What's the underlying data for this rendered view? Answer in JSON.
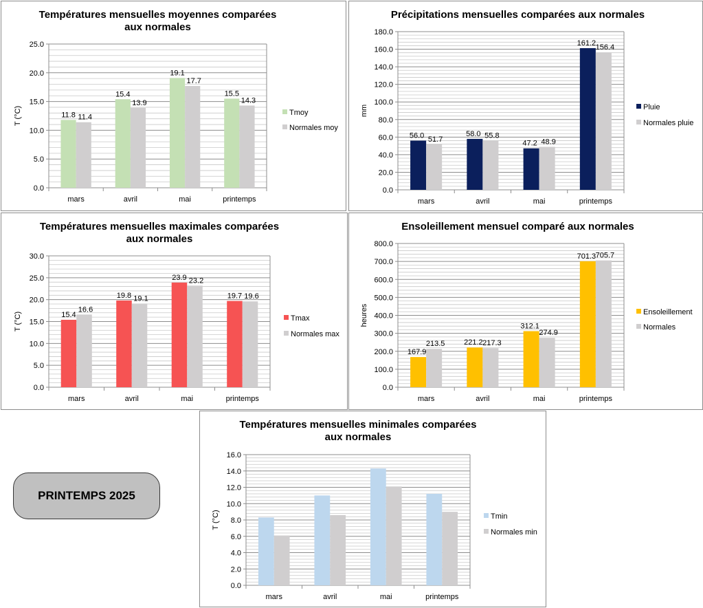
{
  "badge": {
    "label": "PRINTEMPS 2025"
  },
  "chart_data": [
    {
      "id": "tmoy",
      "type": "bar",
      "title": [
        "Températures mensuelles moyennes comparées",
        "aux normales"
      ],
      "ylabel": "T (°C)",
      "xlabel": "",
      "ylim": [
        0,
        25
      ],
      "ystep": 5,
      "ydecimals": 1,
      "categories": [
        "mars",
        "avril",
        "mai",
        "printemps"
      ],
      "series": [
        {
          "name": "Tmoy",
          "color": "#c4e0b4",
          "values": [
            11.8,
            15.4,
            19.1,
            15.5
          ],
          "labels": [
            "11.8",
            "15.4",
            "19.1",
            "15.5"
          ]
        },
        {
          "name": "Normales moy",
          "color": "#d0cecf",
          "values": [
            11.4,
            13.9,
            17.7,
            14.3
          ],
          "labels": [
            "11.4",
            "13.9",
            "17.7",
            "14.3"
          ]
        }
      ],
      "show_labels": true,
      "legend": "right"
    },
    {
      "id": "pluie",
      "type": "bar",
      "title": [
        "Précipitations mensuelles comparées aux normales"
      ],
      "ylabel": "mm",
      "xlabel": "",
      "ylim": [
        0,
        180
      ],
      "ystep": 20,
      "ydecimals": 1,
      "categories": [
        "mars",
        "avril",
        "mai",
        "printemps"
      ],
      "series": [
        {
          "name": "Pluie",
          "color": "#0b1f5c",
          "values": [
            56.0,
            58.0,
            47.2,
            161.2
          ],
          "labels": [
            "56.0",
            "58.0",
            "47.2",
            "161.2"
          ]
        },
        {
          "name": "Normales pluie",
          "color": "#d0cecf",
          "values": [
            51.7,
            55.8,
            48.9,
            156.4
          ],
          "labels": [
            "51.7",
            "55.8",
            "48.9",
            "156.4"
          ]
        }
      ],
      "show_labels": true,
      "legend": "right"
    },
    {
      "id": "tmax",
      "type": "bar",
      "title": [
        "Températures mensuelles maximales comparées",
        "aux normales"
      ],
      "ylabel": "T (°C)",
      "xlabel": "",
      "ylim": [
        0,
        30
      ],
      "ystep": 5,
      "ydecimals": 1,
      "categories": [
        "mars",
        "avril",
        "mai",
        "printemps"
      ],
      "series": [
        {
          "name": "Tmax",
          "color": "#f65353",
          "values": [
            15.4,
            19.8,
            23.9,
            19.7
          ],
          "labels": [
            "15.4",
            "19.8",
            "23.9",
            "19.7"
          ]
        },
        {
          "name": "Normales max",
          "color": "#d0cecf",
          "values": [
            16.6,
            19.1,
            23.2,
            19.6
          ],
          "labels": [
            "16.6",
            "19.1",
            "23.2",
            "19.6"
          ]
        }
      ],
      "show_labels": true,
      "legend": "right"
    },
    {
      "id": "soleil",
      "type": "bar",
      "title": [
        "Ensoleillement mensuel comparé aux normales"
      ],
      "ylabel": "heures",
      "xlabel": "",
      "ylim": [
        0,
        800
      ],
      "ystep": 100,
      "ydecimals": 1,
      "categories": [
        "mars",
        "avril",
        "mai",
        "printemps"
      ],
      "series": [
        {
          "name": "Ensoleillement",
          "color": "#ffc000",
          "values": [
            167.9,
            221.2,
            312.1,
            701.3
          ],
          "labels": [
            "167.9",
            "221.2",
            "312.1",
            "701.3"
          ]
        },
        {
          "name": "Normales",
          "color": "#d0cecf",
          "values": [
            213.5,
            217.3,
            274.9,
            705.7
          ],
          "labels": [
            "213.5",
            "217.3",
            "274.9",
            "705.7"
          ]
        }
      ],
      "show_labels": true,
      "legend": "right"
    },
    {
      "id": "tmin",
      "type": "bar",
      "title": [
        "Températures mensuelles minimales comparées",
        "aux normales"
      ],
      "ylabel": "T (°C)",
      "xlabel": "",
      "ylim": [
        0,
        16
      ],
      "ystep": 2,
      "ydecimals": 1,
      "categories": [
        "mars",
        "avril",
        "mai",
        "printemps"
      ],
      "series": [
        {
          "name": "Tmin",
          "color": "#bdd7ee",
          "values": [
            8.3,
            11.0,
            14.3,
            11.2
          ]
        },
        {
          "name": "Normales min",
          "color": "#d0cecf",
          "values": [
            6.1,
            8.6,
            12.1,
            9.0
          ]
        }
      ],
      "show_labels": false,
      "legend": "right"
    }
  ]
}
